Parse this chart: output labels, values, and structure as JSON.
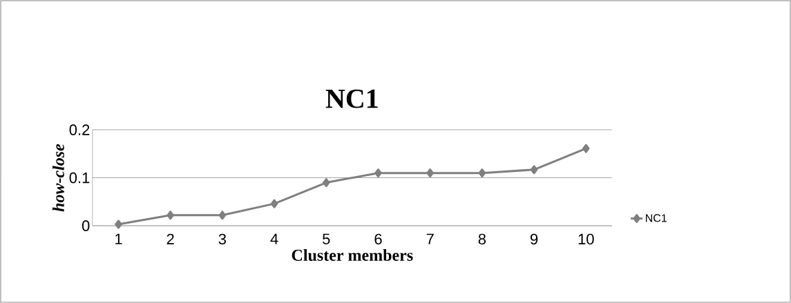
{
  "chart_data": {
    "type": "line",
    "title": "NC1",
    "xlabel": "Cluster members",
    "ylabel": "*how-close*",
    "categories": [
      "1",
      "2",
      "3",
      "4",
      "5",
      "6",
      "7",
      "8",
      "9",
      "10"
    ],
    "series": [
      {
        "name": "NC1",
        "color": "#7f7f7f",
        "values": [
          0.003,
          0.022,
          0.022,
          0.046,
          0.09,
          0.11,
          0.11,
          0.11,
          0.117,
          0.161
        ]
      }
    ],
    "ylim": [
      0,
      0.2
    ],
    "yticks": [
      0,
      0.1,
      0.2
    ],
    "grid": "y",
    "legend": "right",
    "marker": "diamond",
    "line_style": "solid"
  }
}
